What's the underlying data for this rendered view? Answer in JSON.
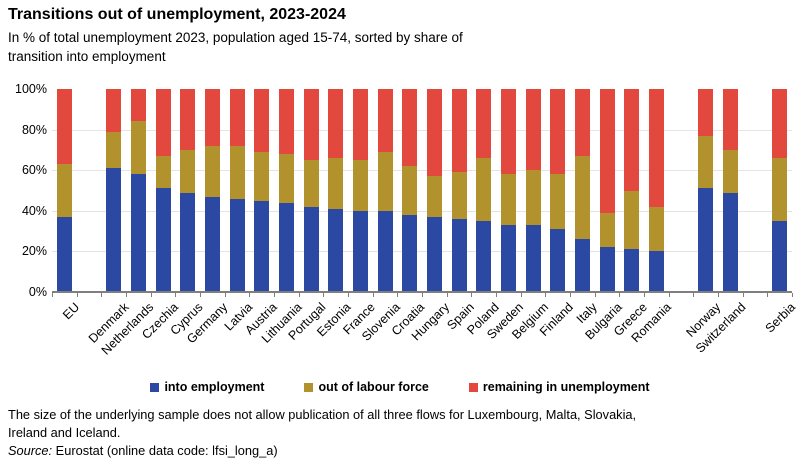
{
  "title": "Transitions out of unemployment, 2023-2024",
  "subtitle_line1": "In % of total unemployment 2023, population aged 15-74, sorted by share of",
  "subtitle_line2": "transition into employment",
  "chart_data": {
    "type": "bar",
    "stacked": true,
    "unit": "percent of total unemployment 2023",
    "ylim": [
      0,
      100
    ],
    "yticks": [
      0,
      20,
      40,
      60,
      80,
      100
    ],
    "ytick_labels": [
      "0%",
      "20%",
      "40%",
      "60%",
      "80%",
      "100%"
    ],
    "grid_values": [
      20,
      40,
      60,
      80
    ],
    "grid_on": true,
    "legend_position": "bottom",
    "categories": [
      "EU",
      "Denmark",
      "Netherlands",
      "Czechia",
      "Cyprus",
      "Germany",
      "Latvia",
      "Austria",
      "Lithuania",
      "Portugal",
      "Estonia",
      "France",
      "Slovenia",
      "Croatia",
      "Hungary",
      "Spain",
      "Poland",
      "Sweden",
      "Belgium",
      "Finland",
      "Italy",
      "Bulgaria",
      "Greece",
      "Romania",
      "Norway",
      "Switzerland",
      "Serbia"
    ],
    "gaps_after": [
      "EU",
      "Romania",
      "Switzerland"
    ],
    "series": [
      {
        "name": "into employment",
        "color": "#2b49a3",
        "values": [
          37,
          61,
          58,
          51,
          49,
          47,
          46,
          45,
          44,
          42,
          41,
          40,
          40,
          38,
          37,
          36,
          35,
          33,
          33,
          31,
          26,
          22,
          21,
          20,
          51,
          49,
          35
        ]
      },
      {
        "name": "out of labour force",
        "color": "#b2922c",
        "values": [
          26,
          18,
          26,
          16,
          21,
          25,
          26,
          24,
          24,
          23,
          25,
          25,
          29,
          24,
          20,
          23,
          31,
          25,
          27,
          27,
          41,
          17,
          29,
          22,
          26,
          21,
          31
        ]
      },
      {
        "name": "remaining in unemployment",
        "color": "#e3483f",
        "values": [
          37,
          21,
          16,
          33,
          30,
          28,
          28,
          31,
          32,
          35,
          34,
          35,
          31,
          38,
          43,
          41,
          34,
          42,
          40,
          42,
          33,
          61,
          50,
          58,
          23,
          30,
          34
        ]
      }
    ]
  },
  "footnote_line1": "The size of the underlying sample does not allow publication of all three flows for Luxembourg, Malta, Slovakia,",
  "footnote_line2": "Ireland and Iceland.",
  "source": {
    "prefix": "Source:",
    "text": " Eurostat (online data code: lfsi_long_a)"
  },
  "colors": {
    "into_employment": "#2b49a3",
    "out_of_labour_force": "#b2922c",
    "remaining_in_unemployment": "#e3483f",
    "gridline": "#e4e4e4",
    "axis": "#7f7f7f"
  }
}
